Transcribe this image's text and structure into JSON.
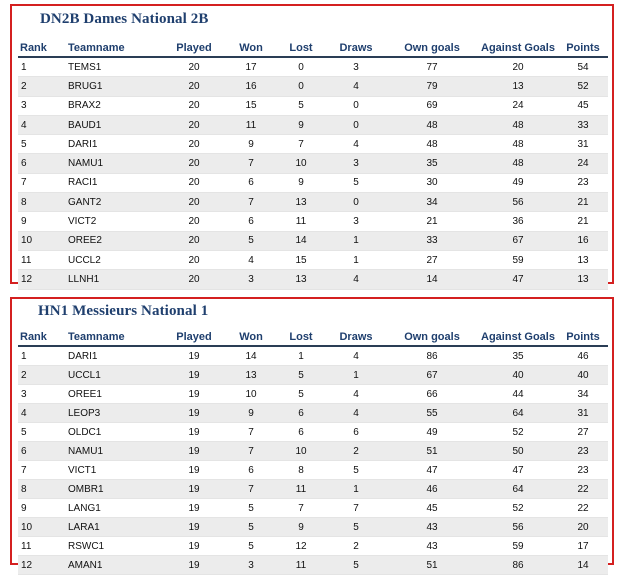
{
  "columns": [
    "Rank",
    "Teamname",
    "Played",
    "Won",
    "Lost",
    "Draws",
    "Own goals",
    "Against Goals",
    "Points"
  ],
  "tables": [
    {
      "title": "DN2B Dames National 2B",
      "rows": [
        [
          "1",
          "TEMS1",
          "20",
          "17",
          "0",
          "3",
          "77",
          "20",
          "54"
        ],
        [
          "2",
          "BRUG1",
          "20",
          "16",
          "0",
          "4",
          "79",
          "13",
          "52"
        ],
        [
          "3",
          "BRAX2",
          "20",
          "15",
          "5",
          "0",
          "69",
          "24",
          "45"
        ],
        [
          "4",
          "BAUD1",
          "20",
          "11",
          "9",
          "0",
          "48",
          "48",
          "33"
        ],
        [
          "5",
          "DARI1",
          "20",
          "9",
          "7",
          "4",
          "48",
          "48",
          "31"
        ],
        [
          "6",
          "NAMU1",
          "20",
          "7",
          "10",
          "3",
          "35",
          "48",
          "24"
        ],
        [
          "7",
          "RACI1",
          "20",
          "6",
          "9",
          "5",
          "30",
          "49",
          "23"
        ],
        [
          "8",
          "GANT2",
          "20",
          "7",
          "13",
          "0",
          "34",
          "56",
          "21"
        ],
        [
          "9",
          "VICT2",
          "20",
          "6",
          "11",
          "3",
          "21",
          "36",
          "21"
        ],
        [
          "10",
          "OREE2",
          "20",
          "5",
          "14",
          "1",
          "33",
          "67",
          "16"
        ],
        [
          "11",
          "UCCL2",
          "20",
          "4",
          "15",
          "1",
          "27",
          "59",
          "13"
        ],
        [
          "12",
          "LLNH1",
          "20",
          "3",
          "13",
          "4",
          "14",
          "47",
          "13"
        ]
      ]
    },
    {
      "title": "HN1 Messieurs National 1",
      "rows": [
        [
          "1",
          "DARI1",
          "19",
          "14",
          "1",
          "4",
          "86",
          "35",
          "46"
        ],
        [
          "2",
          "UCCL1",
          "19",
          "13",
          "5",
          "1",
          "67",
          "40",
          "40"
        ],
        [
          "3",
          "OREE1",
          "19",
          "10",
          "5",
          "4",
          "66",
          "44",
          "34"
        ],
        [
          "4",
          "LEOP3",
          "19",
          "9",
          "6",
          "4",
          "55",
          "64",
          "31"
        ],
        [
          "5",
          "OLDC1",
          "19",
          "7",
          "6",
          "6",
          "49",
          "52",
          "27"
        ],
        [
          "6",
          "NAMU1",
          "19",
          "7",
          "10",
          "2",
          "51",
          "50",
          "23"
        ],
        [
          "7",
          "VICT1",
          "19",
          "6",
          "8",
          "5",
          "47",
          "47",
          "23"
        ],
        [
          "8",
          "OMBR1",
          "19",
          "7",
          "11",
          "1",
          "46",
          "64",
          "22"
        ],
        [
          "9",
          "LANG1",
          "19",
          "5",
          "7",
          "7",
          "45",
          "52",
          "22"
        ],
        [
          "10",
          "LARA1",
          "19",
          "5",
          "9",
          "5",
          "43",
          "56",
          "20"
        ],
        [
          "11",
          "RSWC1",
          "19",
          "5",
          "12",
          "2",
          "43",
          "59",
          "17"
        ],
        [
          "12",
          "AMAN1",
          "19",
          "3",
          "11",
          "5",
          "51",
          "86",
          "14"
        ]
      ]
    }
  ],
  "colors": {
    "border": "#d42020",
    "heading": "#1f3f6e",
    "stripe": "#ececec"
  }
}
